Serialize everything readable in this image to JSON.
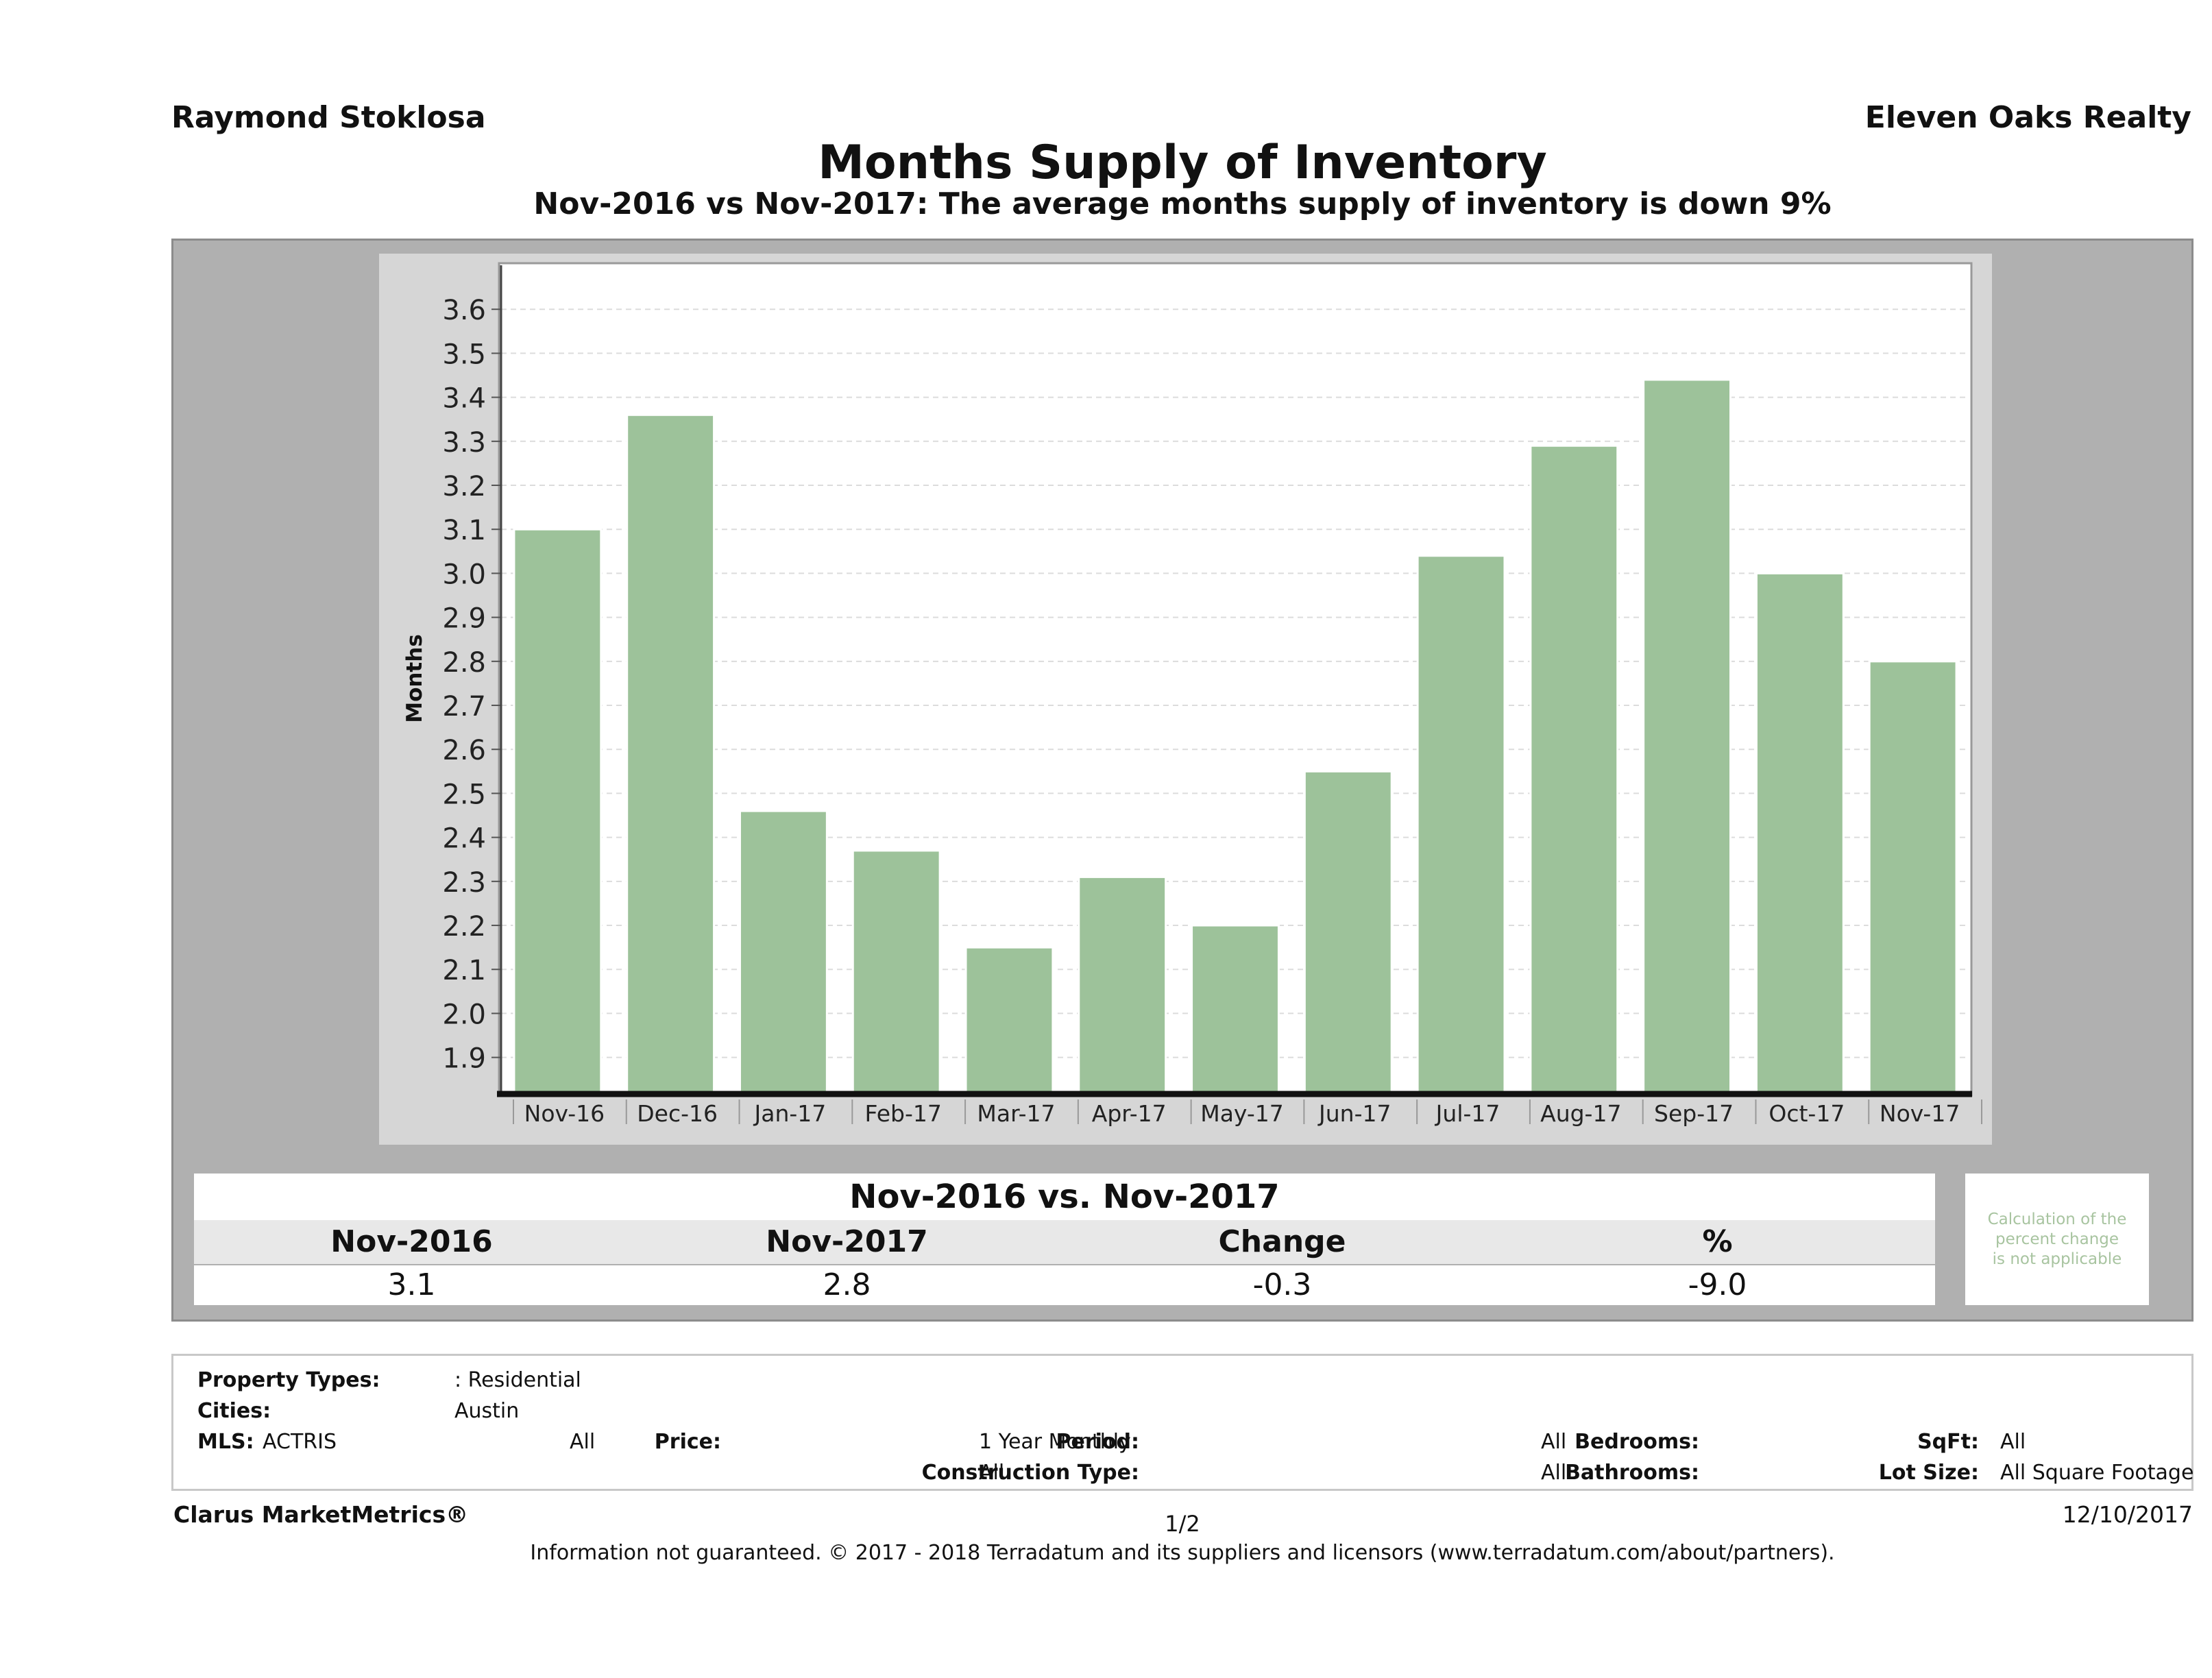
{
  "header": {
    "agent": "Raymond Stoklosa",
    "brokerage": "Eleven Oaks Realty"
  },
  "chart_data": {
    "type": "bar",
    "title": "Months Supply of Inventory",
    "subtitle": "Nov-2016 vs Nov-2017: The average months supply of inventory is down 9%",
    "xlabel": "",
    "ylabel": "Months",
    "categories": [
      "Nov-16",
      "Dec-16",
      "Jan-17",
      "Feb-17",
      "Mar-17",
      "Apr-17",
      "May-17",
      "Jun-17",
      "Jul-17",
      "Aug-17",
      "Sep-17",
      "Oct-17",
      "Nov-17"
    ],
    "values": [
      3.1,
      3.36,
      2.46,
      2.37,
      2.15,
      2.31,
      2.2,
      2.55,
      3.04,
      3.29,
      3.44,
      3.0,
      2.8
    ],
    "ylim": [
      1.82,
      3.7
    ],
    "yticks": [
      "3.6",
      "3.5",
      "3.4",
      "3.3",
      "3.2",
      "3.1",
      "3.0",
      "2.9",
      "2.8",
      "2.7",
      "2.6",
      "2.5",
      "2.4",
      "2.3",
      "2.2",
      "2.1",
      "2.0",
      "1.9"
    ],
    "grid": true,
    "legend": "none",
    "bar_color": "#9dc29a"
  },
  "comparison": {
    "title": "Nov-2016 vs. Nov-2017",
    "headers": [
      "Nov-2016",
      "Nov-2017",
      "Change",
      "%"
    ],
    "values": [
      "3.1",
      "2.8",
      "-0.3",
      "-9.0"
    ],
    "note_lines": [
      "Calculation of the",
      "percent change",
      "is not applicable"
    ]
  },
  "filters": {
    "property_types_label": "Property Types:",
    "property_types_value": ": Residential",
    "cities_label": "Cities:",
    "cities_value": "Austin",
    "mls_label": "MLS:",
    "mls_value": "ACTRIS",
    "price_label": "Price:",
    "price_value": "All",
    "period_label": "Period:",
    "period_value": "1 Year Monthly",
    "construction_label": "Construction Type:",
    "construction_value": "All",
    "bedrooms_label": "Bedrooms:",
    "bedrooms_value": "All",
    "bathrooms_label": "Bathrooms:",
    "bathrooms_value": "All",
    "sqft_label": "SqFt:",
    "sqft_value": "All",
    "lotsize_label": "Lot Size:",
    "lotsize_value": "All Square Footage"
  },
  "footer": {
    "brand": "Clarus MarketMetrics®",
    "page": "1/2",
    "date": "12/10/2017",
    "disclaimer": "Information not guaranteed. © 2017 - 2018 Terradatum and its suppliers and licensors (www.terradatum.com/about/partners)."
  }
}
